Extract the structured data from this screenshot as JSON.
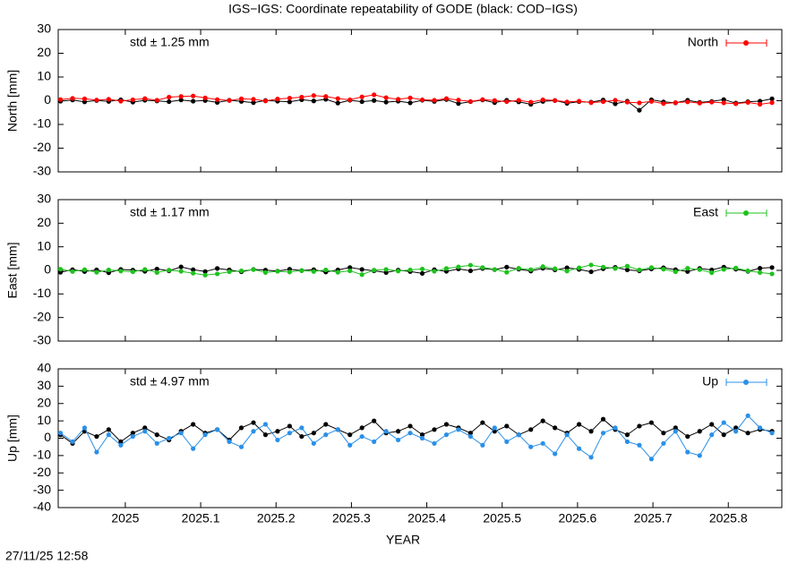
{
  "footer": "27/11/25 12:58",
  "chart_data": [
    {
      "type": "line",
      "title": "IGS−IGS: Coordinate repeatability of GODE (black: COD−IGS)",
      "ylabel": "North [mm]",
      "annotation": "std ± 1.25 mm",
      "xlim": [
        2024.911,
        2025.871
      ],
      "ylim": [
        -30,
        30
      ],
      "yticks": [
        -30,
        -20,
        -10,
        0,
        10,
        20,
        30
      ],
      "x": [
        2024.914,
        2024.93,
        2024.946,
        2024.962,
        2024.978,
        2024.994,
        2025.01,
        2025.026,
        2025.042,
        2025.058,
        2025.074,
        2025.09,
        2025.106,
        2025.122,
        2025.138,
        2025.154,
        2025.17,
        2025.186,
        2025.202,
        2025.218,
        2025.234,
        2025.25,
        2025.266,
        2025.282,
        2025.298,
        2025.314,
        2025.33,
        2025.346,
        2025.362,
        2025.378,
        2025.394,
        2025.41,
        2025.426,
        2025.442,
        2025.458,
        2025.474,
        2025.49,
        2025.506,
        2025.522,
        2025.538,
        2025.554,
        2025.57,
        2025.586,
        2025.602,
        2025.618,
        2025.634,
        2025.65,
        2025.666,
        2025.682,
        2025.698,
        2025.714,
        2025.73,
        2025.746,
        2025.762,
        2025.778,
        2025.794,
        2025.81,
        2025.826,
        2025.842,
        2025.858
      ],
      "series": [
        {
          "color": "#000000",
          "values": [
            -0.2,
            0.3,
            -0.5,
            0.1,
            -0.3,
            0.4,
            -0.6,
            0.2,
            -0.1,
            -0.4,
            0.3,
            -0.2,
            0.1,
            -0.7,
            0.2,
            -0.3,
            -0.8,
            0.1,
            -0.2,
            -0.5,
            0.4,
            -0.1,
            0.6,
            -1,
            0.2,
            -0.4,
            0.1,
            -0.6,
            -0.2,
            -0.9,
            0.2,
            -0.3,
            0.5,
            -1.2,
            -0.4,
            0.3,
            -0.8,
            0.2,
            -0.5,
            -1.5,
            -0.3,
            0.1,
            -1.1,
            -0.4,
            -0.6,
            0.3,
            -1.3,
            -0.2,
            -4,
            0.4,
            -0.5,
            -0.9,
            0.2,
            -0.7,
            -0.3,
            0.5,
            -1,
            -0.4,
            -0.2,
            0.8
          ]
        },
        {
          "name": "North",
          "color": "#ff0000",
          "values": [
            0.5,
            1,
            0.8,
            0.3,
            0.6,
            -0.2,
            0.4,
            0.9,
            0.2,
            1.5,
            1.8,
            2,
            1.2,
            0.5,
            0.1,
            0.8,
            0.6,
            -0.1,
            0.7,
            1.1,
            1.5,
            2.2,
            1.8,
            0.9,
            0.4,
            1.6,
            2.5,
            1.3,
            0.6,
            1.2,
            0.4,
            0.2,
            0.9,
            0.3,
            -0.3,
            0.5,
            0.1,
            -0.4,
            0.2,
            -0.6,
            0.4,
            0.1,
            -0.5,
            -0.2,
            -0.8,
            -0.4,
            0.2,
            -0.6,
            -0.9,
            -0.3,
            -1.2,
            -0.8,
            -0.5,
            -1,
            -0.6,
            -0.9,
            -1.3,
            -0.7,
            -1.5,
            -0.8
          ]
        }
      ]
    },
    {
      "type": "line",
      "ylabel": "East [mm]",
      "annotation": "std ± 1.17 mm",
      "xlim": [
        2024.911,
        2025.871
      ],
      "ylim": [
        -30,
        30
      ],
      "yticks": [
        -30,
        -20,
        -10,
        0,
        10,
        20,
        30
      ],
      "x": [
        2024.914,
        2024.93,
        2024.946,
        2024.962,
        2024.978,
        2024.994,
        2025.01,
        2025.026,
        2025.042,
        2025.058,
        2025.074,
        2025.09,
        2025.106,
        2025.122,
        2025.138,
        2025.154,
        2025.17,
        2025.186,
        2025.202,
        2025.218,
        2025.234,
        2025.25,
        2025.266,
        2025.282,
        2025.298,
        2025.314,
        2025.33,
        2025.346,
        2025.362,
        2025.378,
        2025.394,
        2025.41,
        2025.426,
        2025.442,
        2025.458,
        2025.474,
        2025.49,
        2025.506,
        2025.522,
        2025.538,
        2025.554,
        2025.57,
        2025.586,
        2025.602,
        2025.618,
        2025.634,
        2025.65,
        2025.666,
        2025.682,
        2025.698,
        2025.714,
        2025.73,
        2025.746,
        2025.762,
        2025.778,
        2025.794,
        2025.81,
        2025.826,
        2025.842,
        2025.858
      ],
      "series": [
        {
          "color": "#000000",
          "values": [
            -0.8,
            0.3,
            -0.5,
            0.2,
            -1,
            0.4,
            0.1,
            -0.4,
            0.6,
            -0.2,
            1.5,
            0.3,
            -0.5,
            0.8,
            0.2,
            -0.6,
            0.4,
            0.1,
            -0.3,
            0.5,
            -0.1,
            0.3,
            -0.7,
            0.2,
            1.2,
            0.4,
            -0.2,
            -0.9,
            0.1,
            -0.5,
            -1.3,
            0.3,
            -0.4,
            0.6,
            -0.2,
            0.8,
            0.3,
            1.4,
            0.5,
            -0.3,
            0.9,
            0.2,
            1.1,
            0.4,
            -0.6,
            0.7,
            1.3,
            0.2,
            -0.2,
            0.6,
            1.1,
            0.3,
            -0.5,
            0.8,
            0.2,
            1.4,
            0.5,
            -0.4,
            0.9,
            1.2
          ]
        },
        {
          "name": "East",
          "color": "#1ec21e",
          "values": [
            0.5,
            -0.5,
            0.3,
            -0.8,
            0.2,
            -0.3,
            -0.6,
            0.4,
            -0.9,
            0.1,
            -0.4,
            -1.2,
            -2,
            -1.5,
            -0.6,
            -0.2,
            0.3,
            -0.9,
            -0.4,
            -0.7,
            -0.1,
            -0.5,
            0.2,
            -0.8,
            -0.2,
            -1.8,
            0.1,
            0.4,
            -0.3,
            0.2,
            0.6,
            -0.4,
            0.8,
            1.5,
            2.2,
            1.2,
            0.4,
            -0.8,
            0.9,
            0.3,
            1.6,
            0.7,
            -0.3,
            1.1,
            2.3,
            1.4,
            0.8,
            1.8,
            0.2,
            1.2,
            0.5,
            -0.6,
            0.9,
            0.3,
            -1,
            0.4,
            1,
            -0.2,
            -0.9,
            -1.5
          ]
        }
      ]
    },
    {
      "type": "line",
      "ylabel": "Up [mm]",
      "annotation": "std ± 4.97 mm",
      "xlabel": "YEAR",
      "xlim": [
        2024.911,
        2025.871
      ],
      "xticks": [
        2025,
        2025.1,
        2025.2,
        2025.3,
        2025.4,
        2025.5,
        2025.6,
        2025.7,
        2025.8
      ],
      "ylim": [
        -40,
        40
      ],
      "yticks": [
        -40,
        -30,
        -20,
        -10,
        0,
        10,
        20,
        30,
        40
      ],
      "x": [
        2024.914,
        2024.93,
        2024.946,
        2024.962,
        2024.978,
        2024.994,
        2025.01,
        2025.026,
        2025.042,
        2025.058,
        2025.074,
        2025.09,
        2025.106,
        2025.122,
        2025.138,
        2025.154,
        2025.17,
        2025.186,
        2025.202,
        2025.218,
        2025.234,
        2025.25,
        2025.266,
        2025.282,
        2025.298,
        2025.314,
        2025.33,
        2025.346,
        2025.362,
        2025.378,
        2025.394,
        2025.41,
        2025.426,
        2025.442,
        2025.458,
        2025.474,
        2025.49,
        2025.506,
        2025.522,
        2025.538,
        2025.554,
        2025.57,
        2025.586,
        2025.602,
        2025.618,
        2025.634,
        2025.65,
        2025.666,
        2025.682,
        2025.698,
        2025.714,
        2025.73,
        2025.746,
        2025.762,
        2025.778,
        2025.794,
        2025.81,
        2025.826,
        2025.842,
        2025.858
      ],
      "series": [
        {
          "color": "#000000",
          "values": [
            2,
            -3,
            4,
            1,
            5,
            -2,
            3,
            6,
            2,
            -1,
            4,
            8,
            3,
            5,
            -1,
            6,
            9,
            2,
            4,
            7,
            1,
            3,
            8,
            5,
            2,
            6,
            10,
            3,
            4,
            7,
            2,
            5,
            8,
            6,
            3,
            9,
            4,
            7,
            2,
            5,
            10,
            6,
            3,
            8,
            4,
            11,
            5,
            2,
            7,
            9,
            3,
            6,
            1,
            4,
            8,
            2,
            6,
            3,
            5,
            4
          ]
        },
        {
          "name": "Up",
          "color": "#2a90e8",
          "values": [
            3,
            -2,
            6,
            -8,
            2,
            -4,
            1,
            4,
            -3,
            0,
            3,
            -6,
            2,
            5,
            -2,
            -5,
            4,
            8,
            -1,
            3,
            6,
            -3,
            2,
            5,
            -4,
            1,
            -2,
            4,
            -1,
            3,
            0,
            -3,
            2,
            5,
            1,
            -4,
            6,
            -2,
            2,
            -5,
            -3,
            -9,
            2,
            -6,
            -11,
            3,
            6,
            -2,
            -4,
            -12,
            -3,
            4,
            -8,
            -10,
            2,
            9,
            4,
            13,
            6,
            3
          ]
        }
      ]
    }
  ]
}
